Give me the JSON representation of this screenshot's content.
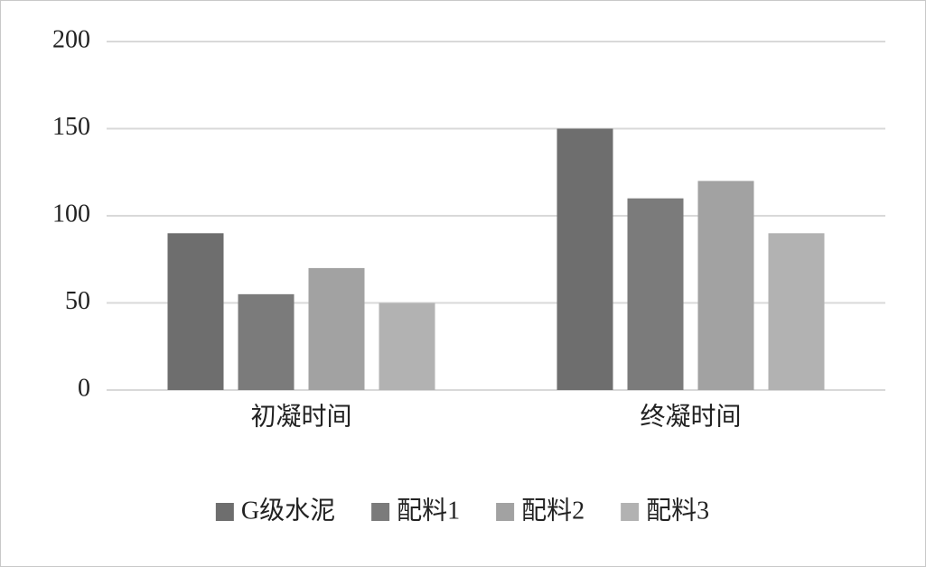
{
  "chart_data": {
    "type": "bar",
    "categories": [
      "初凝时间",
      "终凝时间"
    ],
    "series": [
      {
        "name": "G级水泥",
        "color": "#6e6e6e",
        "values": [
          90,
          150
        ]
      },
      {
        "name": "配料1",
        "color": "#7b7b7b",
        "values": [
          55,
          110
        ]
      },
      {
        "name": "配料2",
        "color": "#a2a2a2",
        "values": [
          70,
          120
        ]
      },
      {
        "name": "配料3",
        "color": "#b2b2b2",
        "values": [
          50,
          90
        ]
      }
    ],
    "ylim": [
      0,
      200
    ],
    "yticks": [
      0,
      50,
      100,
      150,
      200
    ],
    "grid": true,
    "legend": "bottom"
  }
}
